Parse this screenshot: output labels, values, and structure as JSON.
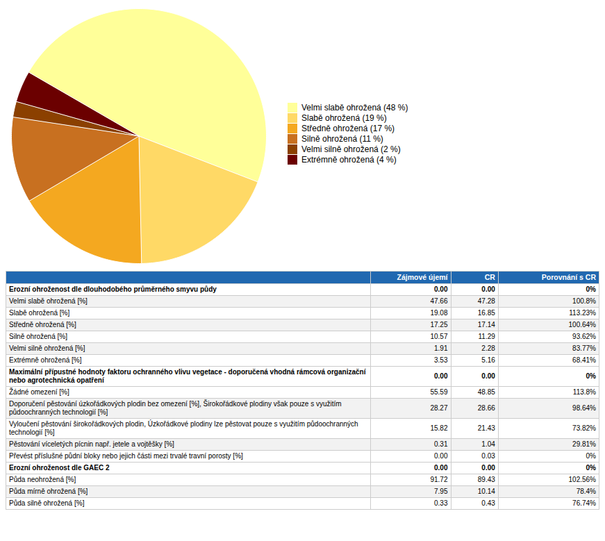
{
  "chart_data": [
    {
      "type": "pie",
      "categories": [
        "Velmi slabě ohrožená (48 %)",
        "Slabě ohrožená (19 %)",
        "Středně ohrožená (17 %)",
        "Silně ohrožená (11 %)",
        "Velmi silně ohrožená (2 %)",
        "Extrémně ohrožená (4 %)"
      ],
      "values": [
        48,
        19,
        17,
        11,
        2,
        4
      ],
      "colors": [
        "#FFFF99",
        "#FFD966",
        "#F4A820",
        "#C87020",
        "#8B4000",
        "#6B0000"
      ],
      "legend": "right"
    },
    {
      "type": "table",
      "color": "#2068B0",
      "columns": [
        null,
        "Zájmové újemí",
        "CR",
        "Porovnání s CR"
      ],
      "rows": [
        [
          "Erozní ohroženost dle dlouhodobého průměrného smyvu půdy",
          "0.00",
          "0.00",
          "0%"
        ],
        [
          "Velmi slabě ohrožená [%]",
          "47.66",
          "47.28",
          "100.8%"
        ],
        [
          "Slabě ohrožená [%]",
          "19.08",
          "16.85",
          "113.23%"
        ],
        [
          "Středně ohrožená [%]",
          "17.25",
          "17.14",
          "100.64%"
        ],
        [
          "Silně ohrožená [%]",
          "10.57",
          "11.29",
          "93.62%"
        ],
        [
          "Velmi silně ohrožená [%]",
          "1.91",
          "2.28",
          "83.77%"
        ],
        [
          "Extrémně ohrožená [%]",
          "3.53",
          "5.16",
          "68.41%"
        ],
        [
          "Maximální přípustné hodnoty faktoru ochranného vlivu vegetace - doporučená vhodná rámcová organizační nebo agrotechnická opatření",
          "0.00",
          "0.00",
          "0%"
        ],
        [
          "Žádné omezení [%]",
          "55.59",
          "48.85",
          "113.8%"
        ],
        [
          "Doporučení pěstování úzkořádkových plodin bez omezení [%], Širokořádkové plodiny však pouze s využitím půdoochranných technologií [%]",
          "28.27",
          "28.66",
          "98.64%"
        ],
        [
          "Vyloučení pěstování širokořádkových plodin, Úzkořádkové plodiny lze pěstovat pouze s využitím půdoochranných technologií [%]",
          "15.82",
          "21.43",
          "73.82%"
        ],
        [
          "Pěstování víceletých pícnin např. jetele a vojtěšky [%]",
          "0.31",
          "1.04",
          "29.81%"
        ],
        [
          "Převést příslušné půdní bloky nebo jejich části mezi trvalé travní porosty [%]",
          "0.00",
          "0.03",
          "0%"
        ],
        [
          "Erozní ohroženost dle GAEC 2",
          "0.00",
          "0.00",
          "0%"
        ],
        [
          "Půda neohrožená [%]",
          "91.72",
          "89.43",
          "102.56%"
        ],
        [
          "Půda mírně ohrožená [%]",
          "7.95",
          "10.14",
          "78.4%"
        ],
        [
          "Půda silně ohrožená [%]",
          "0.33",
          "0.43",
          "76.74%"
        ]
      ],
      "bold_rows": [
        0,
        7,
        13
      ]
    }
  ]
}
